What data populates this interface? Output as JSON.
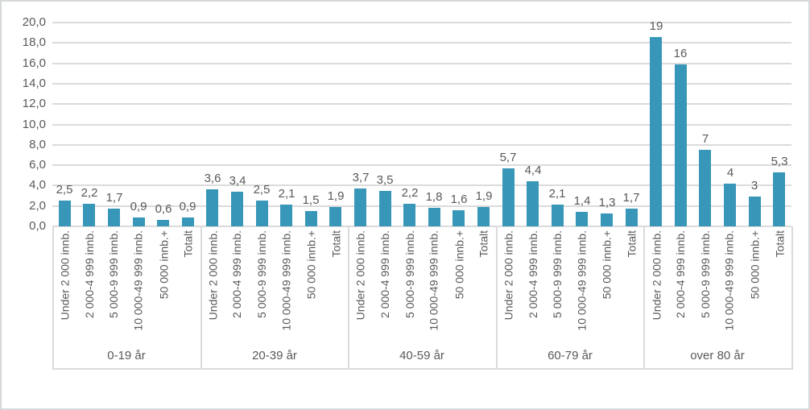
{
  "chart_data": {
    "type": "bar",
    "title": "",
    "legend": "none",
    "grid": "horizontal",
    "bar_color": "#3897b8",
    "grid_color": "#dbdbdb",
    "text_color": "#595959",
    "y_axis": {
      "min": 0,
      "max": 20,
      "step": 2,
      "tick_labels": [
        "20,0",
        "18,0",
        "16,0",
        "14,0",
        "12,0",
        "10,0",
        "8,0",
        "6,0",
        "4,0",
        "2,0",
        "0,0"
      ]
    },
    "categories": [
      "Under 2 000 innb.",
      "2 000-4 999 innb.",
      "5 000-9 999 innb.",
      "10 000-49 999 innb.",
      "50 000 innb.+",
      "Totalt"
    ],
    "groups": [
      {
        "label": "0-19 år",
        "values": [
          2.5,
          2.2,
          1.7,
          0.9,
          0.6,
          0.9
        ],
        "value_labels": [
          "2,5",
          "2,2",
          "1,7",
          "0,9",
          "0,6",
          "0,9"
        ]
      },
      {
        "label": "20-39 år",
        "values": [
          3.6,
          3.4,
          2.5,
          2.1,
          1.5,
          1.9
        ],
        "value_labels": [
          "3,6",
          "3,4",
          "2,5",
          "2,1",
          "1,5",
          "1,9"
        ]
      },
      {
        "label": "40-59 år",
        "values": [
          3.7,
          3.5,
          2.2,
          1.8,
          1.6,
          1.9
        ],
        "value_labels": [
          "3,7",
          "3,5",
          "2,2",
          "1,8",
          "1,6",
          "1,9"
        ]
      },
      {
        "label": "60-79 år",
        "values": [
          5.7,
          4.4,
          2.1,
          1.4,
          1.3,
          1.7
        ],
        "value_labels": [
          "5,7",
          "4,4",
          "2,1",
          "1,4",
          "1,3",
          "1,7"
        ]
      },
      {
        "label": "over 80 år",
        "values": [
          19,
          16,
          7,
          4,
          3,
          5.3
        ],
        "bar_heights": [
          18.6,
          15.9,
          7.5,
          4.2,
          2.9,
          5.3
        ],
        "value_labels": [
          "19",
          "16",
          "7",
          "4",
          "3",
          "5,3"
        ]
      }
    ]
  }
}
